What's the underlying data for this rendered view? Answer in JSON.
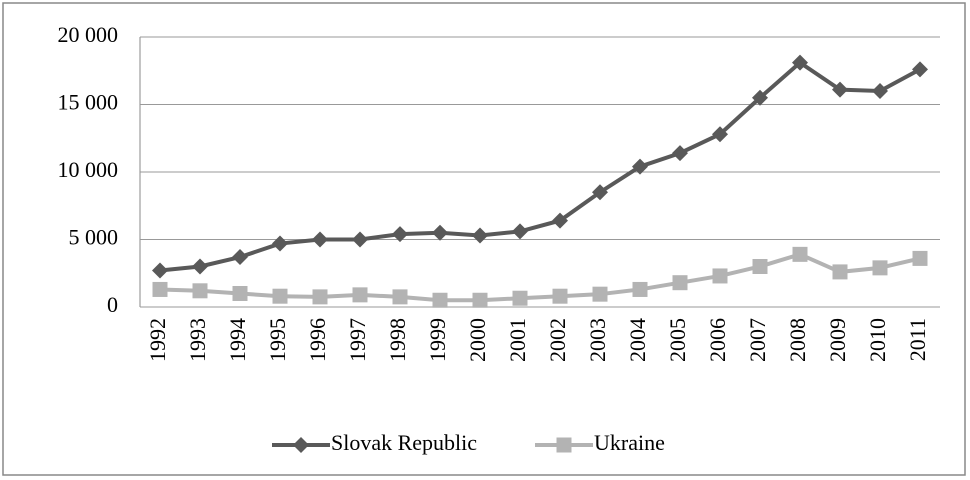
{
  "chart_data": {
    "type": "line",
    "categories": [
      "1992",
      "1993",
      "1994",
      "1995",
      "1996",
      "1997",
      "1998",
      "1999",
      "2000",
      "2001",
      "2002",
      "2003",
      "2004",
      "2005",
      "2006",
      "2007",
      "2008",
      "2009",
      "2010",
      "2011"
    ],
    "series": [
      {
        "name": "Slovak Republic",
        "color": "#595959",
        "marker": "diamond",
        "values": [
          2700,
          3000,
          3700,
          4700,
          5000,
          5000,
          5400,
          5500,
          5300,
          5600,
          6400,
          8500,
          10400,
          11400,
          12800,
          15500,
          18100,
          16100,
          16000,
          17600
        ]
      },
      {
        "name": "Ukraine",
        "color": "#b3b3b3",
        "marker": "square",
        "values": [
          1300,
          1200,
          1000,
          800,
          750,
          900,
          750,
          500,
          500,
          650,
          800,
          950,
          1300,
          1800,
          2300,
          3000,
          3900,
          2600,
          2900,
          3600
        ]
      }
    ],
    "ylim": [
      0,
      20000
    ],
    "yticks": [
      0,
      {
        "value": 5000,
        "label": "5 000"
      },
      {
        "value": 10000,
        "label": "10 000"
      },
      {
        "value": 15000,
        "label": "15 000"
      },
      {
        "value": 20000,
        "label": "20 000"
      }
    ],
    "grid": true,
    "legend": "bottom"
  }
}
